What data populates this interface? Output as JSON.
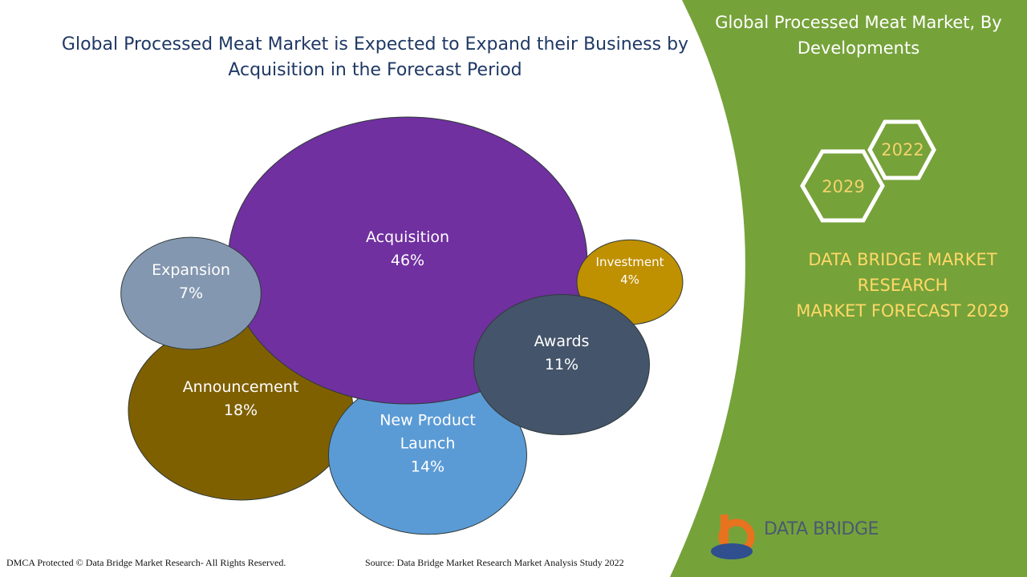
{
  "chart_data": {
    "type": "bubble",
    "title": "Global Processed Meat Market is Expected to Expand their Business by Acquisition in the Forecast Period",
    "categories": [
      "Announcement",
      "New Product Launch",
      "Acquisition",
      "Expansion",
      "Investment",
      "Awards"
    ],
    "values": [
      18,
      14,
      46,
      7,
      4,
      11
    ],
    "value_labels": [
      "18%",
      "14%",
      "46%",
      "7%",
      "4%",
      "11%"
    ],
    "colors": [
      "#7f6000",
      "#5b9bd5",
      "#7030a0",
      "#8497b0",
      "#bf9000",
      "#44546a"
    ]
  },
  "sidebar": {
    "title": "Global Processed Meat Market, By Developments",
    "years": [
      "2022",
      "2029"
    ],
    "brand": [
      "DATA BRIDGE MARKET",
      "RESEARCH",
      "MARKET FORECAST 2029"
    ],
    "logo": "DATA BRIDGE"
  },
  "footer": {
    "copyright": "DMCA Protected © Data Bridge Market Research- All Rights Reserved.",
    "source": "Source: Data Bridge Market Research Market Analysis Study 2022"
  }
}
